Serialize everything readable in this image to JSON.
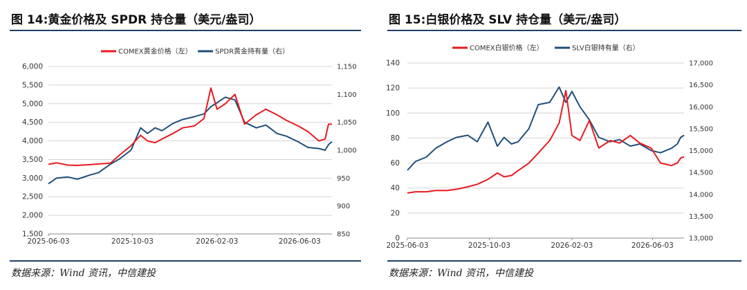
{
  "panels": [
    {
      "title": "图 14:黄金价格及 SPDR 持仓量（美元/盎司）",
      "source": "数据来源：Wind 资讯，中信建投"
    },
    {
      "title": "图 15:白银价格及 SLV 持仓量（美元/盎司）",
      "source": "数据来源：Wind 资讯，中信建投"
    }
  ],
  "chart_data": [
    {
      "type": "line",
      "title": "",
      "xlabel": "",
      "x_ticks": [
        "2025-06-03",
        "2025-10-03",
        "2026-02-03",
        "2026-06-03"
      ],
      "x_range": [
        "2025-06-03",
        "2026-07-20"
      ],
      "y_left": {
        "lim": [
          1500,
          6000
        ],
        "ticks": [
          "1,500",
          "2,000",
          "2,500",
          "3,000",
          "3,500",
          "4,000",
          "4,500",
          "5,000",
          "5,500",
          "6,000"
        ]
      },
      "y_right": {
        "lim": [
          850,
          1150
        ],
        "ticks": [
          "850",
          "900",
          "950",
          "1,000",
          "1,050",
          "1,100",
          "1,150"
        ]
      },
      "grid": "horizontal",
      "legend_position": "top-center",
      "series": [
        {
          "name": "COMEX黄金价格（左）",
          "axis": "left",
          "color": "#e8191f",
          "points": [
            [
              "2025-06-03",
              3370
            ],
            [
              "2025-06-15",
              3410
            ],
            [
              "2025-07-01",
              3350
            ],
            [
              "2025-07-15",
              3340
            ],
            [
              "2025-08-01",
              3360
            ],
            [
              "2025-08-15",
              3380
            ],
            [
              "2025-09-01",
              3400
            ],
            [
              "2025-09-15",
              3630
            ],
            [
              "2025-10-01",
              3870
            ],
            [
              "2025-10-15",
              4150
            ],
            [
              "2025-10-25",
              4000
            ],
            [
              "2025-11-05",
              3950
            ],
            [
              "2025-11-15",
              4050
            ],
            [
              "2025-12-01",
              4200
            ],
            [
              "2025-12-15",
              4350
            ],
            [
              "2026-01-01",
              4400
            ],
            [
              "2026-01-15",
              4600
            ],
            [
              "2026-01-25",
              5420
            ],
            [
              "2026-02-03",
              4850
            ],
            [
              "2026-02-15",
              5000
            ],
            [
              "2026-03-01",
              5250
            ],
            [
              "2026-03-15",
              4450
            ],
            [
              "2026-04-01",
              4700
            ],
            [
              "2026-04-15",
              4850
            ],
            [
              "2026-05-01",
              4700
            ],
            [
              "2026-05-15",
              4550
            ],
            [
              "2026-06-01",
              4400
            ],
            [
              "2026-06-15",
              4250
            ],
            [
              "2026-07-01",
              4000
            ],
            [
              "2026-07-10",
              4050
            ],
            [
              "2026-07-15",
              4450
            ],
            [
              "2026-07-20",
              4450
            ]
          ]
        },
        {
          "name": "SPDR黄金持有量（右）",
          "axis": "right",
          "color": "#1f4e79",
          "points": [
            [
              "2025-06-03",
              940
            ],
            [
              "2025-06-15",
              950
            ],
            [
              "2025-07-01",
              952
            ],
            [
              "2025-07-15",
              948
            ],
            [
              "2025-08-01",
              955
            ],
            [
              "2025-08-15",
              960
            ],
            [
              "2025-09-01",
              975
            ],
            [
              "2025-09-15",
              985
            ],
            [
              "2025-10-01",
              1000
            ],
            [
              "2025-10-15",
              1040
            ],
            [
              "2025-10-25",
              1030
            ],
            [
              "2025-11-05",
              1040
            ],
            [
              "2025-11-15",
              1035
            ],
            [
              "2025-12-01",
              1048
            ],
            [
              "2025-12-15",
              1055
            ],
            [
              "2026-01-01",
              1060
            ],
            [
              "2026-01-15",
              1065
            ],
            [
              "2026-01-25",
              1078
            ],
            [
              "2026-02-03",
              1085
            ],
            [
              "2026-02-15",
              1095
            ],
            [
              "2026-03-01",
              1090
            ],
            [
              "2026-03-15",
              1050
            ],
            [
              "2026-04-01",
              1040
            ],
            [
              "2026-04-15",
              1045
            ],
            [
              "2026-05-01",
              1030
            ],
            [
              "2026-05-15",
              1025
            ],
            [
              "2026-06-01",
              1015
            ],
            [
              "2026-06-15",
              1005
            ],
            [
              "2026-07-01",
              1003
            ],
            [
              "2026-07-10",
              1000
            ],
            [
              "2026-07-15",
              1010
            ],
            [
              "2026-07-20",
              1015
            ]
          ]
        }
      ]
    },
    {
      "type": "line",
      "title": "",
      "xlabel": "",
      "x_ticks": [
        "2025-06-03",
        "2025-10-03",
        "2026-02-03",
        "2026-06-03"
      ],
      "x_range": [
        "2025-06-03",
        "2026-07-20"
      ],
      "y_left": {
        "lim": [
          0,
          140
        ],
        "ticks": [
          "0",
          "20",
          "40",
          "60",
          "80",
          "100",
          "120",
          "140"
        ]
      },
      "y_right": {
        "lim": [
          13000,
          17000
        ],
        "ticks": [
          "13,000",
          "13,500",
          "14,000",
          "14,500",
          "15,000",
          "15,500",
          "16,000",
          "16,500",
          "17,000"
        ]
      },
      "grid": "horizontal",
      "legend_position": "top-center",
      "series": [
        {
          "name": "COMEX白银价格（左）",
          "axis": "left",
          "color": "#e8191f",
          "points": [
            [
              "2025-06-03",
              36
            ],
            [
              "2025-06-15",
              37
            ],
            [
              "2025-07-01",
              37
            ],
            [
              "2025-07-15",
              38
            ],
            [
              "2025-08-01",
              38
            ],
            [
              "2025-08-15",
              39
            ],
            [
              "2025-09-01",
              41
            ],
            [
              "2025-09-15",
              43
            ],
            [
              "2025-10-01",
              47
            ],
            [
              "2025-10-15",
              52
            ],
            [
              "2025-10-25",
              49
            ],
            [
              "2025-11-05",
              50
            ],
            [
              "2025-11-15",
              54
            ],
            [
              "2025-12-01",
              60
            ],
            [
              "2025-12-15",
              68
            ],
            [
              "2026-01-01",
              78
            ],
            [
              "2026-01-15",
              92
            ],
            [
              "2026-01-25",
              118
            ],
            [
              "2026-02-03",
              82
            ],
            [
              "2026-02-15",
              78
            ],
            [
              "2026-03-01",
              94
            ],
            [
              "2026-03-15",
              72
            ],
            [
              "2026-04-01",
              78
            ],
            [
              "2026-04-15",
              76
            ],
            [
              "2026-05-01",
              82
            ],
            [
              "2026-05-15",
              76
            ],
            [
              "2026-06-01",
              72
            ],
            [
              "2026-06-15",
              60
            ],
            [
              "2026-07-01",
              58
            ],
            [
              "2026-07-10",
              60
            ],
            [
              "2026-07-15",
              64
            ],
            [
              "2026-07-20",
              65
            ]
          ]
        },
        {
          "name": "SLV白银持有量（右）",
          "axis": "right",
          "color": "#1f4e79",
          "points": [
            [
              "2025-06-03",
              14550
            ],
            [
              "2025-06-15",
              14750
            ],
            [
              "2025-07-01",
              14850
            ],
            [
              "2025-07-15",
              15050
            ],
            [
              "2025-08-01",
              15200
            ],
            [
              "2025-08-15",
              15300
            ],
            [
              "2025-09-01",
              15350
            ],
            [
              "2025-09-15",
              15200
            ],
            [
              "2025-10-01",
              15650
            ],
            [
              "2025-10-15",
              15100
            ],
            [
              "2025-10-25",
              15300
            ],
            [
              "2025-11-05",
              15150
            ],
            [
              "2025-11-15",
              15200
            ],
            [
              "2025-12-01",
              15500
            ],
            [
              "2025-12-15",
              16050
            ],
            [
              "2026-01-01",
              16100
            ],
            [
              "2026-01-15",
              16450
            ],
            [
              "2026-01-25",
              16100
            ],
            [
              "2026-02-03",
              16350
            ],
            [
              "2026-02-15",
              16000
            ],
            [
              "2026-03-01",
              15700
            ],
            [
              "2026-03-15",
              15300
            ],
            [
              "2026-04-01",
              15200
            ],
            [
              "2026-04-15",
              15250
            ],
            [
              "2026-05-01",
              15100
            ],
            [
              "2026-05-15",
              15150
            ],
            [
              "2026-06-01",
              15000
            ],
            [
              "2026-06-15",
              14950
            ],
            [
              "2026-07-01",
              15050
            ],
            [
              "2026-07-10",
              15150
            ],
            [
              "2026-07-15",
              15300
            ],
            [
              "2026-07-20",
              15350
            ]
          ]
        }
      ]
    }
  ]
}
